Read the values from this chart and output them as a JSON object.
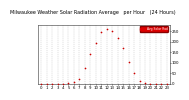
{
  "title": "Milwaukee Weather Solar Radiation Average   per Hour   (24 Hours)",
  "hours": [
    0,
    1,
    2,
    3,
    4,
    5,
    6,
    7,
    8,
    9,
    10,
    11,
    12,
    13,
    14,
    15,
    16,
    17,
    18,
    19,
    20,
    21,
    22,
    23
  ],
  "radiation": [
    0,
    0,
    0,
    0,
    0,
    2,
    8,
    25,
    75,
    140,
    195,
    245,
    260,
    250,
    218,
    170,
    105,
    50,
    12,
    2,
    0,
    0,
    0,
    0
  ],
  "dot_color": "#cc0000",
  "bg_color": "#ffffff",
  "grid_color": "#bbbbbb",
  "ylim": [
    0,
    280
  ],
  "yticks": [
    0,
    50,
    100,
    150,
    200,
    250
  ],
  "ytick_labels": [
    "0",
    "50",
    "100",
    "150",
    "200",
    "250"
  ],
  "legend_color": "#dd0000",
  "legend_label": "Avg Solar Rad",
  "title_fontsize": 3.5,
  "tick_fontsize": 2.8
}
